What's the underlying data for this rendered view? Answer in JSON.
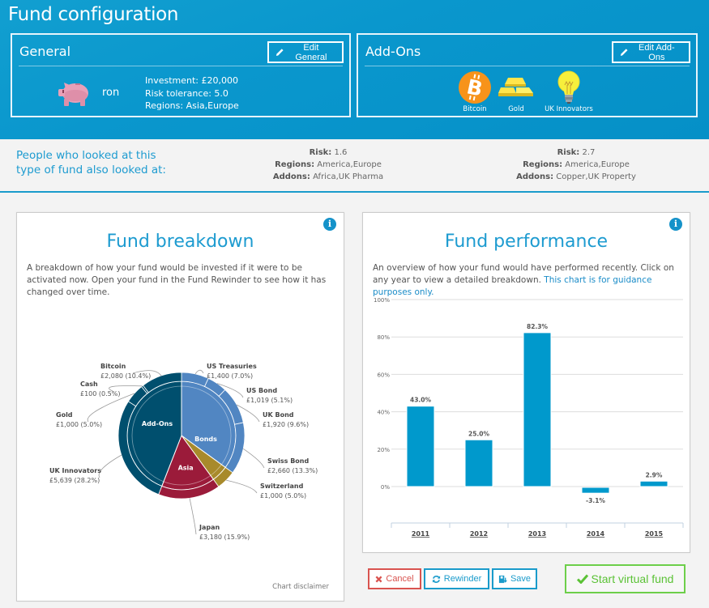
{
  "header": {
    "title": "Fund configuration"
  },
  "general": {
    "title": "General",
    "edit_label": "Edit General",
    "fund_name": "ron",
    "investment": "Investment: £20,000",
    "risk": "Risk tolerance: 5.0",
    "regions": "Regions: Asia,Europe"
  },
  "addons": {
    "title": "Add-Ons",
    "edit_label": "Edit Add-Ons",
    "items": [
      {
        "label": "Bitcoin",
        "icon": "bitcoin-icon"
      },
      {
        "label": "Gold",
        "icon": "gold-bars-icon"
      },
      {
        "label": "UK Innovators",
        "icon": "lightbulb-icon"
      }
    ]
  },
  "suggestions": {
    "lead_line1": "People who looked at this",
    "lead_line2": "type of fund also looked at:",
    "risk_key": "Risk:",
    "regions_key": "Regions:",
    "addons_key": "Addons:",
    "items": [
      {
        "risk": "1.6",
        "regions": "America,Europe",
        "addons": "Africa,UK Pharma"
      },
      {
        "risk": "2.7",
        "regions": "America,Europe",
        "addons": "Copper,UK Property"
      }
    ]
  },
  "breakdown": {
    "title": "Fund breakdown",
    "description": "A breakdown of how your fund would be invested if it were to be activated now. Open your fund in the Fund Rewinder to see how it has changed over time.",
    "disclaimer": "Chart disclaimer"
  },
  "performance": {
    "title": "Fund performance",
    "description": "An overview of how your fund would have performed recently. Click on any year to view a detailed breakdown. ",
    "guidance": "This chart is for guidance purposes only."
  },
  "actions": {
    "cancel": "Cancel",
    "rewinder": "Rewinder",
    "save": "Save",
    "start": "Start virtual fund"
  },
  "colors": {
    "header_bg": "#0a97cd",
    "accent": "#1d9bd0",
    "bar": "#0099cc",
    "addons": "#004f6e",
    "bonds": "#5186c2",
    "switzerland": "#a88a2b",
    "asia": "#9b1b3a",
    "cancel": "#d9534f",
    "start": "#5bc236"
  },
  "chart_data": [
    {
      "type": "pie",
      "title": "Fund breakdown",
      "inner": [
        {
          "name": "Bonds",
          "value": 35.0
        },
        {
          "name": "",
          "value": 5.0
        },
        {
          "name": "Asia",
          "value": 15.9
        },
        {
          "name": "Add-Ons",
          "value": 44.1
        }
      ],
      "outer": [
        {
          "name": "US Treasuries",
          "amount": "£1,400",
          "value": 7.0,
          "group": 0
        },
        {
          "name": "US Bond",
          "amount": "£1,019",
          "value": 5.1,
          "group": 0
        },
        {
          "name": "UK Bond",
          "amount": "£1,920",
          "value": 9.6,
          "group": 0
        },
        {
          "name": "Swiss Bond",
          "amount": "£2,660",
          "value": 13.3,
          "group": 0
        },
        {
          "name": "Switzerland",
          "amount": "£1,000",
          "value": 5.0,
          "group": 1
        },
        {
          "name": "Japan",
          "amount": "£3,180",
          "value": 15.9,
          "group": 2
        },
        {
          "name": "UK Innovators",
          "amount": "£5,639",
          "value": 28.2,
          "group": 3
        },
        {
          "name": "Gold",
          "amount": "£1,000",
          "value": 5.0,
          "group": 3
        },
        {
          "name": "Cash",
          "amount": "£100",
          "value": 0.5,
          "group": 3
        },
        {
          "name": "Bitcoin",
          "amount": "£2,080",
          "value": 10.4,
          "group": 3
        }
      ]
    },
    {
      "type": "bar",
      "title": "Fund performance",
      "categories": [
        "2011",
        "2012",
        "2013",
        "2014",
        "2015"
      ],
      "values": [
        43.0,
        25.0,
        82.3,
        -3.1,
        2.9
      ],
      "value_labels": [
        "43.0%",
        "25.0%",
        "82.3%",
        "-3.1%",
        "2.9%"
      ],
      "yticks": [
        "0%",
        "20%",
        "40%",
        "60%",
        "80%",
        "100%"
      ],
      "ylim": [
        -20,
        100
      ],
      "grid": true,
      "xlabel": "",
      "ylabel": ""
    }
  ]
}
